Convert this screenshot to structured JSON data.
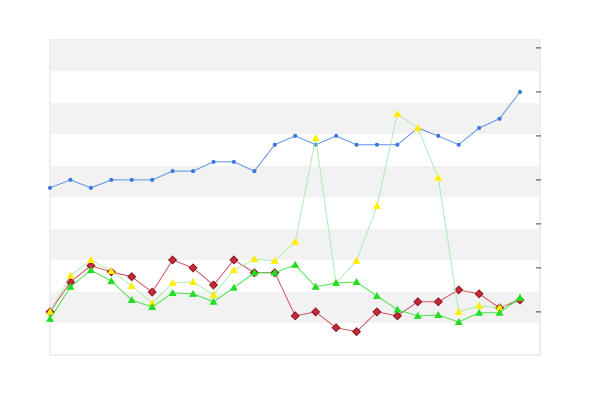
{
  "chart_data": {
    "type": "line",
    "categories": [
      null,
      null,
      null,
      null,
      null,
      null,
      null,
      null,
      null,
      null,
      null,
      null,
      null,
      null,
      null,
      null,
      null,
      null,
      null,
      null,
      null,
      null,
      null,
      null
    ],
    "series": [
      {
        "color": "#3a78e0",
        "marker": "circle",
        "values": [
          2.82,
          3.0,
          2.82,
          3.0,
          3.0,
          3.0,
          3.2,
          3.2,
          3.41,
          3.41,
          3.2,
          3.8,
          4.0,
          3.8,
          4.0,
          3.8,
          3.8,
          3.8,
          4.18,
          4.0,
          3.8,
          4.18,
          4.39,
          5.0
        ]
      },
      {
        "color": "#c8283c",
        "marker": "diamond",
        "values": [
          0,
          0.68,
          1.05,
          0.91,
          0.8,
          0.45,
          1.18,
          1.0,
          0.61,
          1.18,
          0.89,
          0.89,
          -0.09,
          0,
          -0.36,
          -0.45,
          0,
          -0.09,
          0.23,
          0.23,
          0.5,
          0.41,
          0.09,
          0.27
        ]
      },
      {
        "color": "#ffee00",
        "marker": "triangle",
        "values": [
          0,
          0.82,
          1.18,
          0.93,
          0.59,
          0.2,
          0.66,
          0.68,
          0.39,
          0.95,
          1.2,
          1.16,
          1.59,
          3.95,
          0.66,
          1.16,
          2.41,
          4.5,
          4.18,
          3.05,
          0,
          0.14,
          0.09,
          0.32
        ]
      },
      {
        "color": "#22dd22",
        "marker": "triangle",
        "values": [
          -0.16,
          0.57,
          0.95,
          0.7,
          0.27,
          0.11,
          0.43,
          0.41,
          0.23,
          0.55,
          0.89,
          0.89,
          1.07,
          0.57,
          0.66,
          0.68,
          0.36,
          0.05,
          -0.09,
          -0.07,
          -0.23,
          -0.02,
          -0.02,
          0.32
        ]
      }
    ],
    "ylim": [
      -0.98,
      6.18
    ],
    "yticks": [
      0,
      1,
      2,
      3,
      4,
      5,
      6
    ]
  }
}
